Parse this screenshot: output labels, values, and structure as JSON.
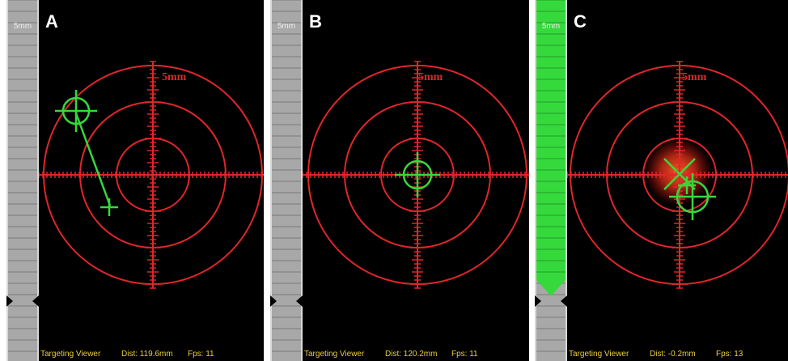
{
  "gauge_label": "5mm",
  "ring_label": "5mm",
  "status_title": "Targeting Viewer",
  "panels": [
    {
      "letter": "A",
      "dist": "Dist: 119.6mm",
      "fps": "Fps: 11"
    },
    {
      "letter": "B",
      "dist": "Dist: 120.2mm",
      "fps": "Fps: 11"
    },
    {
      "letter": "C",
      "dist": "Dist: -0.2mm",
      "fps": "Fps: 13"
    }
  ],
  "colors": {
    "target_red": "#e0262a",
    "marker_green": "#35d93c",
    "status_yellow": "#e8d03a",
    "gauge_gray": "#a8a8a8"
  }
}
